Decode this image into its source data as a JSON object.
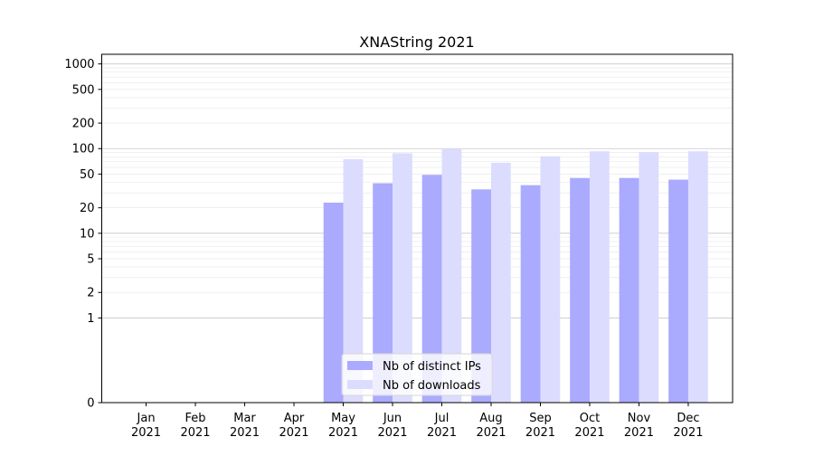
{
  "chart_data": {
    "type": "bar",
    "title": "XNAString 2021",
    "xlabel": "",
    "ylabel": "",
    "yscale": "symlog",
    "ylim": [
      0,
      1300
    ],
    "yticks": [
      0,
      1,
      2,
      5,
      10,
      20,
      50,
      100,
      200,
      500,
      1000
    ],
    "ytick_labels": [
      "0",
      "1",
      "2",
      "5",
      "10",
      "20",
      "50",
      "100",
      "200",
      "500",
      "1000"
    ],
    "grid": "horizontal (major and minor)",
    "legend_position": "lower center",
    "categories": [
      [
        "Jan",
        "2021"
      ],
      [
        "Feb",
        "2021"
      ],
      [
        "Mar",
        "2021"
      ],
      [
        "Apr",
        "2021"
      ],
      [
        "May",
        "2021"
      ],
      [
        "Jun",
        "2021"
      ],
      [
        "Jul",
        "2021"
      ],
      [
        "Aug",
        "2021"
      ],
      [
        "Sep",
        "2021"
      ],
      [
        "Oct",
        "2021"
      ],
      [
        "Nov",
        "2021"
      ],
      [
        "Dec",
        "2021"
      ]
    ],
    "series": [
      {
        "name": "Nb of distinct IPs",
        "color": "#aaaaff",
        "values": [
          0,
          0,
          0,
          0,
          23,
          39,
          49,
          33,
          37,
          45,
          45,
          43
        ]
      },
      {
        "name": "Nb of downloads",
        "color": "#dcdcff",
        "values": [
          0,
          0,
          0,
          0,
          75,
          88,
          100,
          68,
          81,
          93,
          91,
          93
        ]
      }
    ]
  }
}
